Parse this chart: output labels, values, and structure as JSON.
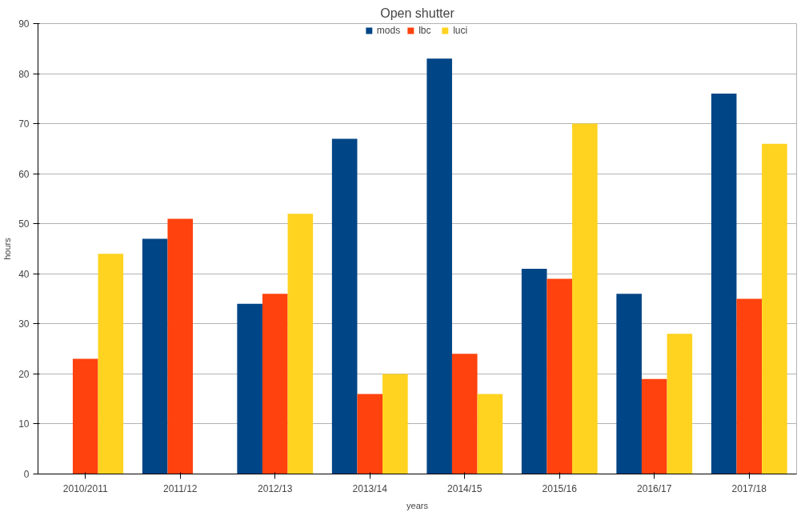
{
  "chart_data": {
    "type": "bar",
    "title": "Open shutter",
    "xlabel": "years",
    "ylabel": "hours",
    "categories": [
      "2010/2011",
      "2011/12",
      "2012/13",
      "2013/14",
      "2014/15",
      "2015/16",
      "2016/17",
      "2017/18"
    ],
    "series": [
      {
        "name": "mods",
        "color": "#004586",
        "values": [
          null,
          47,
          34,
          67,
          83,
          41,
          36,
          76
        ]
      },
      {
        "name": "lbc",
        "color": "#ff420e",
        "values": [
          23,
          51,
          36,
          16,
          24,
          39,
          19,
          35
        ]
      },
      {
        "name": "luci",
        "color": "#ffd320",
        "values": [
          44,
          null,
          52,
          20,
          16,
          70,
          28,
          66
        ]
      }
    ],
    "ylim": [
      0,
      90
    ],
    "yticks": [
      0,
      10,
      20,
      30,
      40,
      50,
      60,
      70,
      80,
      90
    ],
    "grid": "y",
    "legend": "top"
  }
}
